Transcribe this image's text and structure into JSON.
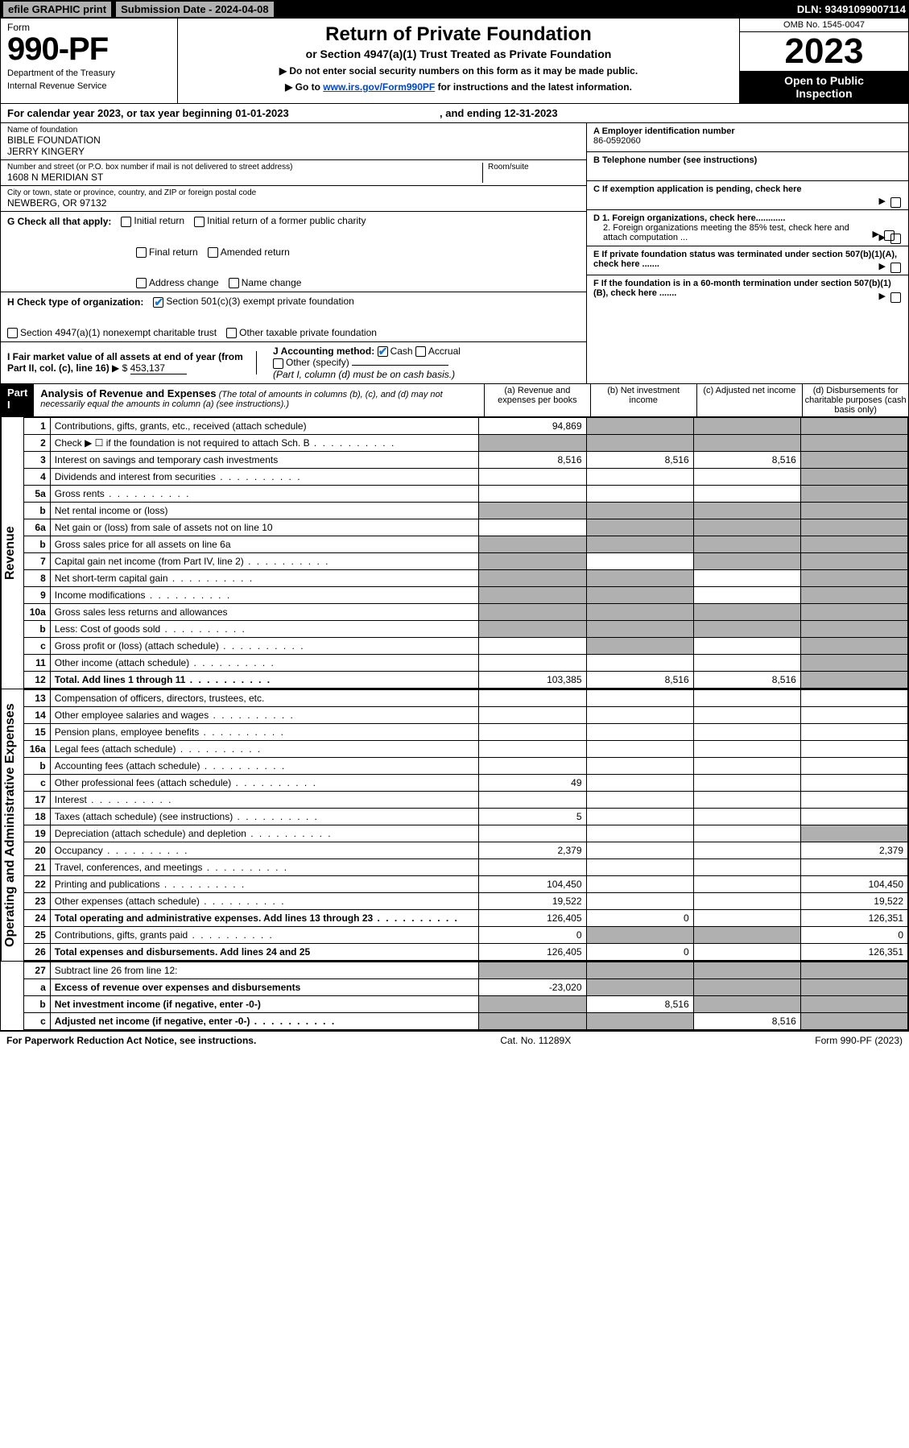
{
  "topbar": {
    "efile": "efile GRAPHIC print",
    "subdate_label": "Submission Date - 2024-04-08",
    "dln": "DLN: 93491099007114"
  },
  "header": {
    "form_label": "Form",
    "form_no": "990-PF",
    "dept1": "Department of the Treasury",
    "dept2": "Internal Revenue Service",
    "title": "Return of Private Foundation",
    "subtitle": "or Section 4947(a)(1) Trust Treated as Private Foundation",
    "note1": "▶ Do not enter social security numbers on this form as it may be made public.",
    "note2_pre": "▶ Go to ",
    "note2_link": "www.irs.gov/Form990PF",
    "note2_post": " for instructions and the latest information.",
    "omb": "OMB No. 1545-0047",
    "year": "2023",
    "open1": "Open to Public",
    "open2": "Inspection"
  },
  "calendar": {
    "text_a": "For calendar year 2023, or tax year beginning 01-01-2023",
    "text_b": ", and ending 12-31-2023"
  },
  "foundation": {
    "name_label": "Name of foundation",
    "name1": "BIBLE FOUNDATION",
    "name2": "JERRY KINGERY",
    "addr_label": "Number and street (or P.O. box number if mail is not delivered to street address)",
    "addr": "1608 N MERIDIAN ST",
    "room_label": "Room/suite",
    "city_label": "City or town, state or province, country, and ZIP or foreign postal code",
    "city": "NEWBERG, OR  97132"
  },
  "right_info": {
    "a_label": "A Employer identification number",
    "a_val": "86-0592060",
    "b_label": "B Telephone number (see instructions)",
    "c_label": "C If exemption application is pending, check here",
    "d1_label": "D 1. Foreign organizations, check here............",
    "d2_label": "2. Foreign organizations meeting the 85% test, check here and attach computation ...",
    "e_label": "E If private foundation status was terminated under section 507(b)(1)(A), check here .......",
    "f_label": "F If the foundation is in a 60-month termination under section 507(b)(1)(B), check here .......",
    "arrow": "▶"
  },
  "g": {
    "label": "G Check all that apply:",
    "opts": [
      "Initial return",
      "Initial return of a former public charity",
      "Final return",
      "Amended return",
      "Address change",
      "Name change"
    ]
  },
  "h": {
    "label": "H Check type of organization:",
    "opt1": "Section 501(c)(3) exempt private foundation",
    "opt2": "Section 4947(a)(1) nonexempt charitable trust",
    "opt3": "Other taxable private foundation"
  },
  "i": {
    "label": "I Fair market value of all assets at end of year (from Part II, col. (c), line 16)",
    "prefix": "▶ $",
    "value": "453,137"
  },
  "j": {
    "label": "J Accounting method:",
    "cash": "Cash",
    "accrual": "Accrual",
    "other": "Other (specify)",
    "note": "(Part I, column (d) must be on cash basis.)"
  },
  "part1": {
    "label": "Part I",
    "title": "Analysis of Revenue and Expenses",
    "note": "(The total of amounts in columns (b), (c), and (d) may not necessarily equal the amounts in column (a) (see instructions).)",
    "col_a": "(a)   Revenue and expenses per books",
    "col_b": "(b)   Net investment income",
    "col_c": "(c)   Adjusted net income",
    "col_d": "(d)   Disbursements for charitable purposes (cash basis only)"
  },
  "side_labels": {
    "revenue": "Revenue",
    "expenses": "Operating and Administrative Expenses"
  },
  "rows": [
    {
      "n": "1",
      "desc": "Contributions, gifts, grants, etc., received (attach schedule)",
      "a": "94,869",
      "b_shade": true,
      "c_shade": true,
      "d_shade": true
    },
    {
      "n": "2",
      "desc": "Check ▶ ☐ if the foundation is not required to attach Sch. B",
      "desc_dots": true,
      "a_shade": true,
      "b_shade": true,
      "c_shade": true,
      "d_shade": true
    },
    {
      "n": "3",
      "desc": "Interest on savings and temporary cash investments",
      "a": "8,516",
      "b": "8,516",
      "c": "8,516",
      "d_shade": true
    },
    {
      "n": "4",
      "desc": "Dividends and interest from securities",
      "desc_dots": true,
      "d_shade": true
    },
    {
      "n": "5a",
      "desc": "Gross rents",
      "desc_dots": true,
      "d_shade": true
    },
    {
      "n": "b",
      "desc": "Net rental income or (loss)",
      "a_shade": true,
      "b_shade": true,
      "c_shade": true,
      "d_shade": true
    },
    {
      "n": "6a",
      "desc": "Net gain or (loss) from sale of assets not on line 10",
      "b_shade": true,
      "c_shade": true,
      "d_shade": true
    },
    {
      "n": "b",
      "desc": "Gross sales price for all assets on line 6a",
      "a_shade": true,
      "b_shade": true,
      "c_shade": true,
      "d_shade": true
    },
    {
      "n": "7",
      "desc": "Capital gain net income (from Part IV, line 2)",
      "desc_dots": true,
      "a_shade": true,
      "c_shade": true,
      "d_shade": true
    },
    {
      "n": "8",
      "desc": "Net short-term capital gain",
      "desc_dots": true,
      "a_shade": true,
      "b_shade": true,
      "d_shade": true
    },
    {
      "n": "9",
      "desc": "Income modifications",
      "desc_dots": true,
      "a_shade": true,
      "b_shade": true,
      "d_shade": true
    },
    {
      "n": "10a",
      "desc": "Gross sales less returns and allowances",
      "a_shade": true,
      "b_shade": true,
      "c_shade": true,
      "d_shade": true
    },
    {
      "n": "b",
      "desc": "Less: Cost of goods sold",
      "desc_dots": true,
      "a_shade": true,
      "b_shade": true,
      "c_shade": true,
      "d_shade": true
    },
    {
      "n": "c",
      "desc": "Gross profit or (loss) (attach schedule)",
      "desc_dots": true,
      "b_shade": true,
      "d_shade": true
    },
    {
      "n": "11",
      "desc": "Other income (attach schedule)",
      "desc_dots": true,
      "d_shade": true
    },
    {
      "n": "12",
      "desc": "Total. Add lines 1 through 11",
      "desc_dots": true,
      "bold": true,
      "a": "103,385",
      "b": "8,516",
      "c": "8,516",
      "d_shade": true
    }
  ],
  "exp_rows": [
    {
      "n": "13",
      "desc": "Compensation of officers, directors, trustees, etc."
    },
    {
      "n": "14",
      "desc": "Other employee salaries and wages",
      "desc_dots": true
    },
    {
      "n": "15",
      "desc": "Pension plans, employee benefits",
      "desc_dots": true
    },
    {
      "n": "16a",
      "desc": "Legal fees (attach schedule)",
      "desc_dots": true
    },
    {
      "n": "b",
      "desc": "Accounting fees (attach schedule)",
      "desc_dots": true
    },
    {
      "n": "c",
      "desc": "Other professional fees (attach schedule)",
      "desc_dots": true,
      "a": "49"
    },
    {
      "n": "17",
      "desc": "Interest",
      "desc_dots": true
    },
    {
      "n": "18",
      "desc": "Taxes (attach schedule) (see instructions)",
      "desc_dots": true,
      "a": "5"
    },
    {
      "n": "19",
      "desc": "Depreciation (attach schedule) and depletion",
      "desc_dots": true,
      "d_shade": true
    },
    {
      "n": "20",
      "desc": "Occupancy",
      "desc_dots": true,
      "a": "2,379",
      "d": "2,379"
    },
    {
      "n": "21",
      "desc": "Travel, conferences, and meetings",
      "desc_dots": true
    },
    {
      "n": "22",
      "desc": "Printing and publications",
      "desc_dots": true,
      "a": "104,450",
      "d": "104,450"
    },
    {
      "n": "23",
      "desc": "Other expenses (attach schedule)",
      "desc_dots": true,
      "a": "19,522",
      "d": "19,522"
    },
    {
      "n": "24",
      "desc": "Total operating and administrative expenses. Add lines 13 through 23",
      "desc_dots": true,
      "bold": true,
      "a": "126,405",
      "b": "0",
      "d": "126,351"
    },
    {
      "n": "25",
      "desc": "Contributions, gifts, grants paid",
      "desc_dots": true,
      "a": "0",
      "b_shade": true,
      "c_shade": true,
      "d": "0"
    },
    {
      "n": "26",
      "desc": "Total expenses and disbursements. Add lines 24 and 25",
      "bold": true,
      "a": "126,405",
      "b": "0",
      "d": "126,351"
    }
  ],
  "final_rows": [
    {
      "n": "27",
      "desc": "Subtract line 26 from line 12:",
      "a_shade": true,
      "b_shade": true,
      "c_shade": true,
      "d_shade": true
    },
    {
      "n": "a",
      "desc": "Excess of revenue over expenses and disbursements",
      "bold": true,
      "a": "-23,020",
      "b_shade": true,
      "c_shade": true,
      "d_shade": true
    },
    {
      "n": "b",
      "desc": "Net investment income (if negative, enter -0-)",
      "bold": true,
      "a_shade": true,
      "b": "8,516",
      "c_shade": true,
      "d_shade": true
    },
    {
      "n": "c",
      "desc": "Adjusted net income (if negative, enter -0-)",
      "desc_dots": true,
      "bold": true,
      "a_shade": true,
      "b_shade": true,
      "c": "8,516",
      "d_shade": true
    }
  ],
  "footer": {
    "left": "For Paperwork Reduction Act Notice, see instructions.",
    "center": "Cat. No. 11289X",
    "right": "Form 990-PF (2023)"
  }
}
